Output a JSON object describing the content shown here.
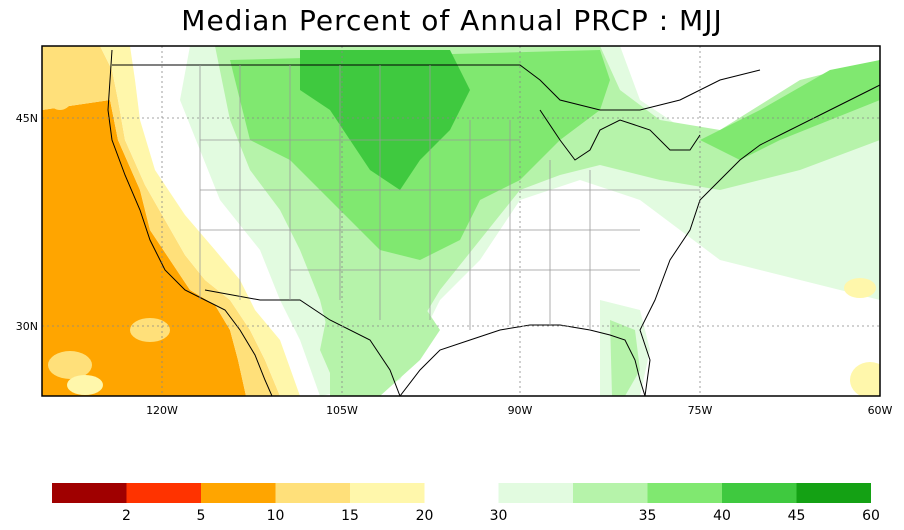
{
  "title": "Median Percent of Annual PRCP  :  MJJ",
  "map": {
    "lon_range": [
      -130,
      -60
    ],
    "lat_range": [
      25,
      50
    ],
    "x_ticks": [
      {
        "lon": -120,
        "label": "120W"
      },
      {
        "lon": -105,
        "label": "105W"
      },
      {
        "lon": -90,
        "label": "90W"
      },
      {
        "lon": -75,
        "label": "75W"
      },
      {
        "lon": -60,
        "label": "60W"
      }
    ],
    "y_ticks": [
      {
        "lat": 45,
        "label": "45N"
      },
      {
        "lat": 30,
        "label": "30N"
      }
    ]
  },
  "legend": {
    "breaks": [
      "2",
      "5",
      "10",
      "15",
      "20",
      "30",
      "35",
      "40",
      "45",
      "60"
    ],
    "colors": [
      "#a00000",
      "#ff3300",
      "#ffa500",
      "#ffe07a",
      "#fff7ab",
      "#e2fbe0",
      "#b6f3aa",
      "#80e870",
      "#3fc93f",
      "#14a114"
    ]
  },
  "colors": {
    "ocean": "#ffffff",
    "land_default": "#ffffff"
  }
}
